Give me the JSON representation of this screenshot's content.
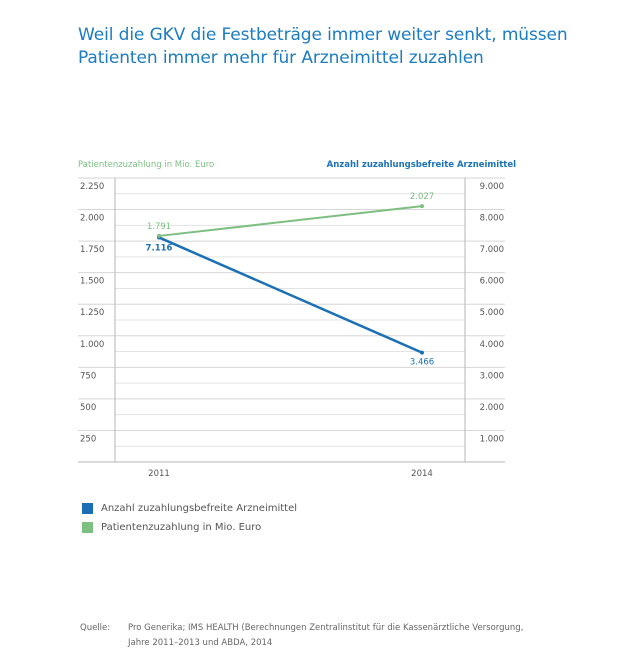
{
  "title": {
    "line1": "Weil die GKV die Festbeträge immer weiter senkt, müssen",
    "line2": "Patienten immer mehr für Arzneimittel zuzahlen"
  },
  "colors": {
    "green": "#7cbf81",
    "blue": "#1b6fb5",
    "title": "#1b7cc1",
    "grid": "#dcdcdc",
    "axis": "#b5b5b5"
  },
  "chart_data": {
    "type": "line",
    "title": "Weil die GKV die Festbeträge immer weiter senkt, müssen Patienten immer mehr für Arzneimittel zuzahlen",
    "x": [
      "2011",
      "2014"
    ],
    "xlabel": "",
    "left_axis": {
      "label": "Patientenzuzahlung in Mio. Euro",
      "ylim": [
        0,
        2250
      ],
      "ticks": [
        "2.250",
        "2.000",
        "1.750",
        "1.500",
        "1.250",
        "1.000",
        "750",
        "500",
        "250"
      ],
      "tick_values": [
        2250,
        2000,
        1750,
        1500,
        1250,
        1000,
        750,
        500,
        250
      ]
    },
    "right_axis": {
      "label": "Anzahl zuzahlungsbefreite Arzneimittel",
      "ylim": [
        0,
        9000
      ],
      "ticks": [
        "9.000",
        "8.000",
        "7.000",
        "6.000",
        "5.000",
        "4.000",
        "3.000",
        "2.000",
        "1.000"
      ],
      "tick_values": [
        9000,
        8000,
        7000,
        6000,
        5000,
        4000,
        3000,
        2000,
        1000
      ]
    },
    "series": [
      {
        "name": "Anzahl zuzahlungsbefreite Arzneimittel",
        "axis": "right",
        "color": "#1b6fb5",
        "values": [
          7116,
          3466
        ],
        "labels": [
          "7.116",
          "3.466"
        ]
      },
      {
        "name": "Patientenzuzahlung in Mio. Euro",
        "axis": "left",
        "color": "#7cbf81",
        "values": [
          1791,
          2027
        ],
        "labels": [
          "1.791",
          "2.027"
        ]
      }
    ],
    "grid": true,
    "legend": "bottom-left"
  },
  "legend": [
    {
      "label": "Anzahl zuzahlungsbefreite Arzneimittel"
    },
    {
      "label": "Patientenzuzahlung in Mio. Euro"
    }
  ],
  "source": {
    "key": "Quelle:",
    "line1": "Pro Generika; IMS HEALTH (Berechnungen Zentralinstitut für die Kassenärztliche Versorgung,",
    "line2": "Jahre 2011–2013 und ABDA, 2014"
  }
}
